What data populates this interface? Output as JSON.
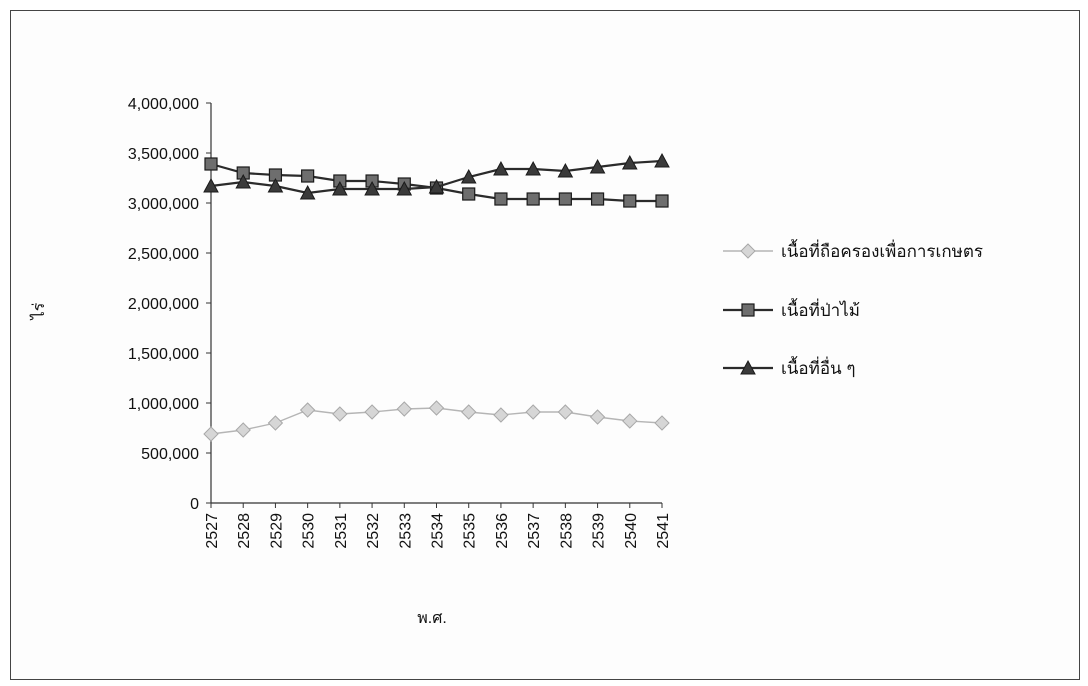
{
  "chart_data": {
    "type": "line",
    "title": "",
    "xlabel": "พ.ศ.",
    "ylabel": "ไร่",
    "categories": [
      "2527",
      "2528",
      "2529",
      "2530",
      "2531",
      "2532",
      "2533",
      "2534",
      "2535",
      "2536",
      "2537",
      "2538",
      "2539",
      "2540",
      "2541"
    ],
    "ylim": [
      0,
      4000000
    ],
    "yticks": [
      0,
      500000,
      1000000,
      1500000,
      2000000,
      2500000,
      3000000,
      3500000,
      4000000
    ],
    "ytick_labels": [
      "0",
      "500,000",
      "1,000,000",
      "1,500,000",
      "2,000,000",
      "2,500,000",
      "3,000,000",
      "3,500,000",
      "4,000,000"
    ],
    "grid": false,
    "legend_position": "right",
    "series": [
      {
        "name": "เนื้อที่ถือครองเพื่อการเกษตร",
        "marker": "diamond",
        "color": "#b5b5b5",
        "values": [
          690000,
          730000,
          800000,
          930000,
          890000,
          910000,
          940000,
          950000,
          910000,
          880000,
          910000,
          910000,
          860000,
          820000,
          800000
        ]
      },
      {
        "name": "เนื้อที่ป่าไม้",
        "marker": "square",
        "color": "#2b2b2b",
        "values": [
          3390000,
          3300000,
          3280000,
          3270000,
          3220000,
          3220000,
          3190000,
          3150000,
          3090000,
          3040000,
          3040000,
          3040000,
          3040000,
          3020000,
          3020000
        ]
      },
      {
        "name": "เนื้อที่อื่น ๆ",
        "marker": "triangle",
        "color": "#2b2b2b",
        "values": [
          3170000,
          3210000,
          3170000,
          3100000,
          3140000,
          3140000,
          3140000,
          3160000,
          3260000,
          3340000,
          3340000,
          3320000,
          3360000,
          3400000,
          3420000
        ]
      }
    ]
  }
}
